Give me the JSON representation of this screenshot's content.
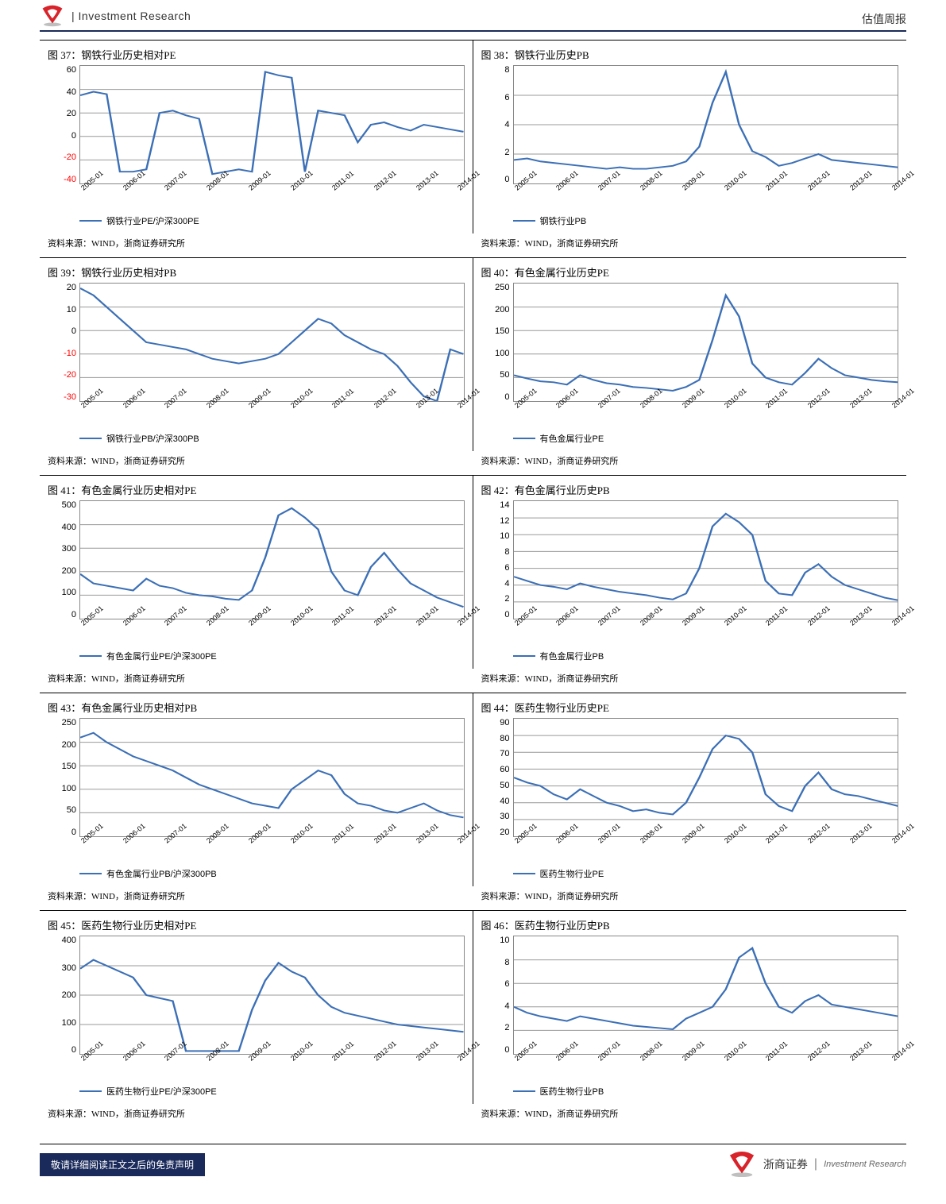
{
  "header": {
    "left_title": "| Investment Research",
    "right_title": "估值周报"
  },
  "colors": {
    "line": "#3b6fb6",
    "grid": "#999999",
    "border": "#888888",
    "neg_tick": "#ff0000",
    "header_rule": "#1a2a5a"
  },
  "x_labels": [
    "2005-01",
    "2006-01",
    "2007-01",
    "2008-01",
    "2009-01",
    "2010-01",
    "2011-01",
    "2012-01",
    "2013-01",
    "2014-01"
  ],
  "source_text": "资料来源：WIND，浙商证券研究所",
  "rows": [
    {
      "left": {
        "title": "图 37：钢铁行业历史相对PE",
        "legend": "钢铁行业PE/沪深300PE",
        "y_ticks": [
          60,
          40,
          20,
          0,
          -20,
          -40
        ],
        "ylim": [
          -40,
          60
        ],
        "series": [
          35,
          38,
          36,
          -30,
          -30,
          -28,
          20,
          22,
          18,
          15,
          -32,
          -30,
          -28,
          -30,
          55,
          52,
          50,
          -30,
          22,
          20,
          18,
          -5,
          10,
          12,
          8,
          5,
          10,
          8,
          6,
          4
        ]
      },
      "right": {
        "title": "图 38：钢铁行业历史PB",
        "legend": "钢铁行业PB",
        "y_ticks": [
          8,
          6,
          4,
          2,
          0
        ],
        "ylim": [
          0,
          8
        ],
        "series": [
          1.6,
          1.7,
          1.5,
          1.4,
          1.3,
          1.2,
          1.1,
          1.0,
          1.1,
          1.0,
          1.0,
          1.1,
          1.2,
          1.5,
          2.5,
          5.5,
          7.6,
          4.0,
          2.2,
          1.8,
          1.2,
          1.4,
          1.7,
          2.0,
          1.6,
          1.5,
          1.4,
          1.3,
          1.2,
          1.1
        ]
      }
    },
    {
      "left": {
        "title": "图 39：钢铁行业历史相对PB",
        "legend": "钢铁行业PB/沪深300PB",
        "y_ticks": [
          20,
          10,
          0,
          -10,
          -20,
          -30
        ],
        "ylim": [
          -30,
          20
        ],
        "series": [
          18,
          15,
          10,
          5,
          0,
          -5,
          -6,
          -7,
          -8,
          -10,
          -12,
          -13,
          -14,
          -13,
          -12,
          -10,
          -5,
          0,
          5,
          3,
          -2,
          -5,
          -8,
          -10,
          -15,
          -22,
          -28,
          -30,
          -8,
          -10
        ]
      },
      "right": {
        "title": "图 40：有色金属行业历史PE",
        "legend": "有色金属行业PE",
        "y_ticks": [
          250,
          200,
          150,
          100,
          50,
          0
        ],
        "ylim": [
          0,
          250
        ],
        "series": [
          55,
          48,
          42,
          40,
          35,
          55,
          45,
          38,
          35,
          30,
          28,
          25,
          22,
          30,
          45,
          130,
          225,
          180,
          80,
          50,
          40,
          35,
          60,
          90,
          70,
          55,
          50,
          45,
          42,
          40
        ]
      }
    },
    {
      "left": {
        "title": "图 41：有色金属行业历史相对PE",
        "legend": "有色金属行业PE/沪深300PE",
        "y_ticks": [
          500,
          400,
          300,
          200,
          100,
          0
        ],
        "ylim": [
          0,
          500
        ],
        "series": [
          190,
          150,
          140,
          130,
          120,
          170,
          140,
          130,
          110,
          100,
          95,
          85,
          80,
          120,
          260,
          440,
          470,
          430,
          380,
          200,
          120,
          100,
          220,
          280,
          210,
          150,
          120,
          90,
          70,
          50
        ]
      },
      "right": {
        "title": "图 42：有色金属行业历史PB",
        "legend": "有色金属行业PB",
        "y_ticks": [
          14,
          12,
          10,
          8,
          6,
          4,
          2,
          0
        ],
        "ylim": [
          0,
          14
        ],
        "series": [
          5.0,
          4.5,
          4.0,
          3.8,
          3.5,
          4.2,
          3.8,
          3.5,
          3.2,
          3.0,
          2.8,
          2.5,
          2.3,
          3.0,
          6.0,
          11.0,
          12.5,
          11.5,
          10.0,
          4.5,
          3.0,
          2.8,
          5.5,
          6.5,
          5.0,
          4.0,
          3.5,
          3.0,
          2.5,
          2.2
        ]
      }
    },
    {
      "left": {
        "title": "图 43：有色金属行业历史相对PB",
        "legend": "有色金属行业PB/沪深300PB",
        "y_ticks": [
          250,
          200,
          150,
          100,
          50,
          0
        ],
        "ylim": [
          0,
          250
        ],
        "series": [
          210,
          220,
          200,
          185,
          170,
          160,
          150,
          140,
          125,
          110,
          100,
          90,
          80,
          70,
          65,
          60,
          100,
          120,
          140,
          130,
          90,
          70,
          65,
          55,
          50,
          60,
          70,
          55,
          45,
          40
        ]
      },
      "right": {
        "title": "图 44：医药生物行业历史PE",
        "legend": "医药生物行业PE",
        "y_ticks": [
          90,
          80,
          70,
          60,
          50,
          40,
          30,
          20
        ],
        "ylim": [
          20,
          90
        ],
        "series": [
          55,
          52,
          50,
          45,
          42,
          48,
          44,
          40,
          38,
          35,
          36,
          34,
          33,
          40,
          55,
          72,
          80,
          78,
          70,
          45,
          38,
          35,
          50,
          58,
          48,
          45,
          44,
          42,
          40,
          38
        ]
      }
    },
    {
      "left": {
        "title": "图 45：医药生物行业历史相对PE",
        "legend": "医药生物行业PE/沪深300PE",
        "y_ticks": [
          400,
          300,
          200,
          100,
          0
        ],
        "ylim": [
          0,
          400
        ],
        "series": [
          290,
          320,
          300,
          280,
          260,
          200,
          190,
          180,
          10,
          10,
          10,
          10,
          10,
          150,
          250,
          310,
          280,
          260,
          200,
          160,
          140,
          130,
          120,
          110,
          100,
          95,
          90,
          85,
          80,
          75
        ]
      },
      "right": {
        "title": "图 46：医药生物行业历史PB",
        "legend": "医药生物行业PB",
        "y_ticks": [
          10,
          8,
          6,
          4,
          2,
          0
        ],
        "ylim": [
          0,
          10
        ],
        "series": [
          4.0,
          3.5,
          3.2,
          3.0,
          2.8,
          3.2,
          3.0,
          2.8,
          2.6,
          2.4,
          2.3,
          2.2,
          2.1,
          3.0,
          3.5,
          4.0,
          5.5,
          8.2,
          9.0,
          6.0,
          4.0,
          3.5,
          4.5,
          5.0,
          4.2,
          4.0,
          3.8,
          3.6,
          3.4,
          3.2
        ]
      }
    }
  ],
  "footer": {
    "disclaimer": "敬请详细阅读正文之后的免责声明",
    "brand_cn": "浙商证券",
    "brand_en": "Investment Research"
  }
}
